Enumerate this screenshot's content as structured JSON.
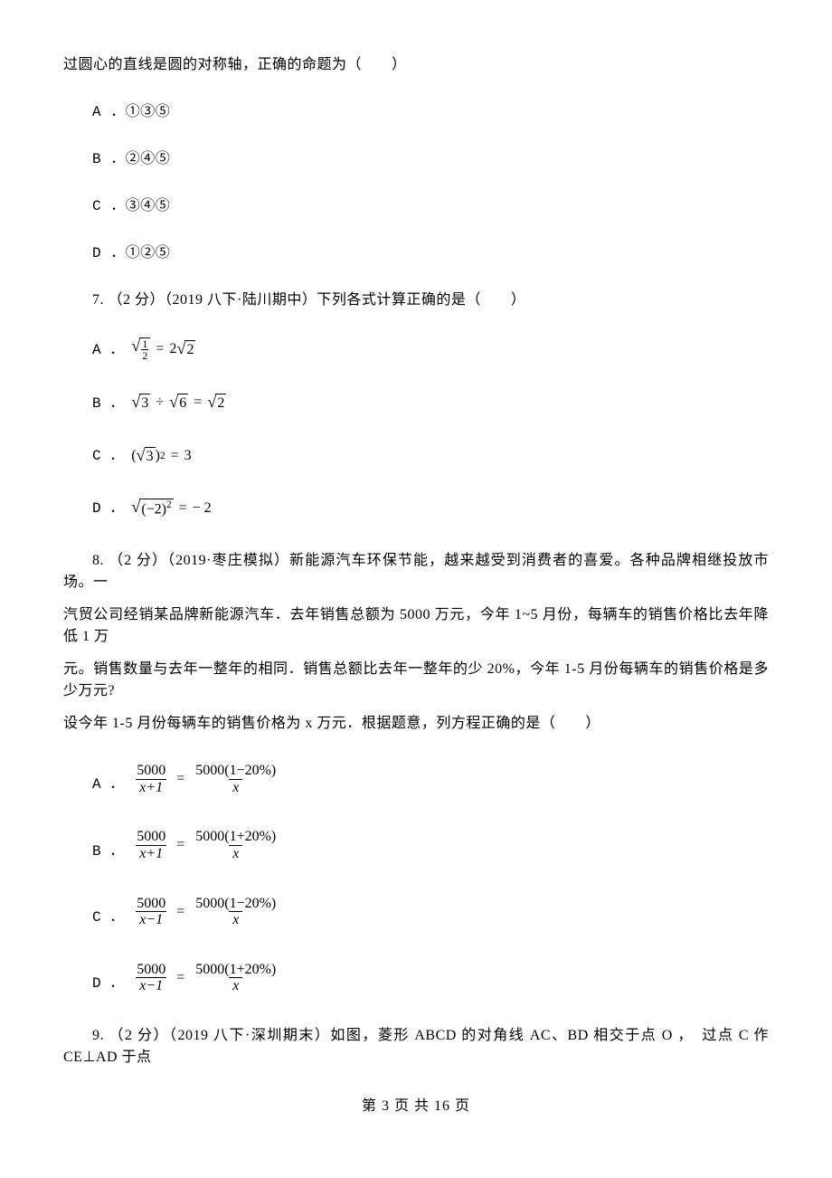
{
  "colors": {
    "text": "#000000",
    "bg": "#ffffff",
    "rule": "#000000"
  },
  "typography": {
    "body_family": "SimSun",
    "body_size_pt": 12,
    "math_family": "Times New Roman",
    "mono_family": "Courier New"
  },
  "q6_tail": "过圆心的直线是圆的对称轴，正确的命题为（　　）",
  "q6_opts": {
    "A": "A ．①③⑤",
    "B": "B ．②④⑤",
    "C": "C ．③④⑤",
    "D": "D ．①②⑤"
  },
  "q7_stem": "7. （2 分）（2019 八下·陆川期中）下列各式计算正确的是（　　）",
  "q7_opts": {
    "A_letter": "A ．",
    "B_letter": "B ．",
    "C_letter": "C ．",
    "D_letter": "D ．",
    "A_frac_n": "1",
    "A_frac_d": "2",
    "A_rhs": "2",
    "A_rhs_rad": "2",
    "B_a": "3",
    "B_b": "6",
    "B_r": "2",
    "C_base": "3",
    "C_exp": "2",
    "C_rhs": "3",
    "D_inner": "(−2)",
    "D_exp": "2",
    "D_rhs": "− 2"
  },
  "q8_stem_l1": "8. （2 分）（2019·枣庄模拟）新能源汽车环保节能，越来越受到消费者的喜爱。各种品牌相继投放市场。一",
  "q8_stem_l2": "汽贸公司经销某品牌新能源汽车．去年销售总额为 5000 万元，今年 1~5 月份，每辆车的销售价格比去年降低 1 万",
  "q8_stem_l3": "元。销售数量与去年一整年的相同．销售总额比去年一整年的少 20%，今年 1-5 月份每辆车的销售价格是多少万元?",
  "q8_stem_l4": "设今年 1-5 月份每辆车的销售价格为 x 万元．根据题意，列方程正确的是（　　）",
  "q8_opts": {
    "A_letter": "A ．",
    "B_letter": "B ．",
    "C_letter": "C ．",
    "D_letter": "D ．",
    "lhs_num": "5000",
    "den_xp1": "x+1",
    "den_xm1": "x−1",
    "den_x": "x",
    "rhs_minus": "5000(1−20%)",
    "rhs_plus": "5000(1+20%)"
  },
  "q9_stem": "9. （2 分）（2019 八下·深圳期末）如图，菱形 ABCD 的对角线 AC、BD 相交于点 O ，　过点 C 作 CE⊥AD 于点",
  "footer": "第 3 页 共 16 页"
}
